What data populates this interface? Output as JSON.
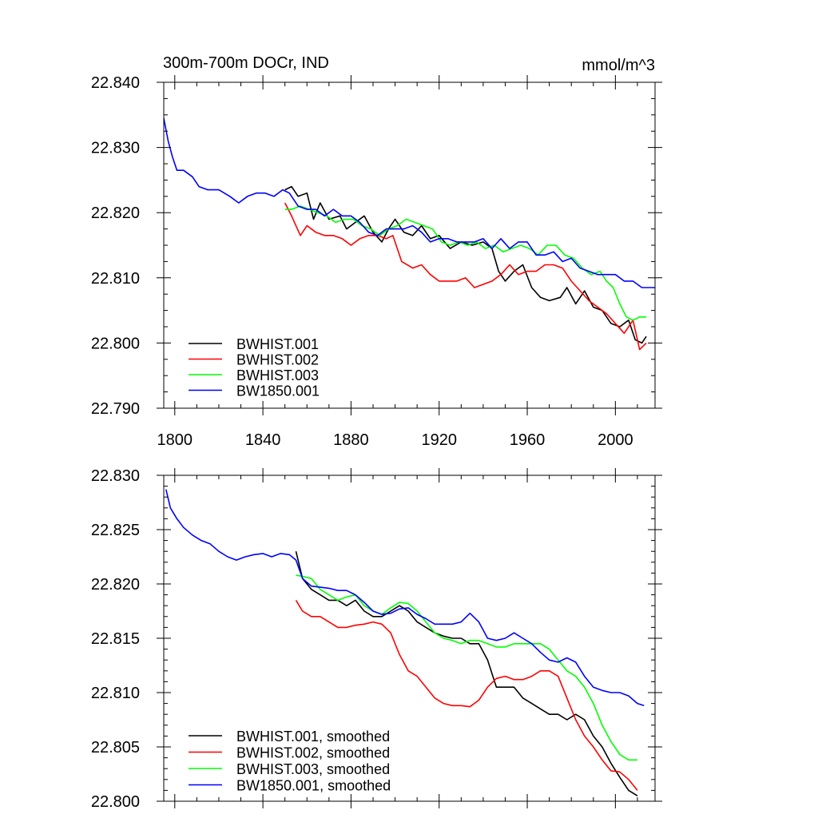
{
  "title_left": "300m-700m DOCr, IND",
  "title_right": "mmol/m^3",
  "chart_data": [
    {
      "type": "line",
      "title": "300m-700m DOCr, IND",
      "units": "mmol/m^3",
      "xlim": [
        1795,
        2018
      ],
      "ylim": [
        22.79,
        22.84
      ],
      "xticks": [
        1800,
        1840,
        1880,
        1920,
        1960,
        2000
      ],
      "xtick_labels": [
        "1800",
        "1840",
        "1880",
        "1920",
        "1960",
        "2000"
      ],
      "yticks": [
        22.79,
        22.8,
        22.81,
        22.82,
        22.83,
        22.84
      ],
      "ytick_labels": [
        "22.790",
        "22.800",
        "22.810",
        "22.820",
        "22.830",
        "22.840"
      ],
      "legend": "bottom-left",
      "series": [
        {
          "name": "BWHIST.001",
          "color": "#000000",
          "x": [
            1850,
            1853,
            1856,
            1860,
            1863,
            1866,
            1870,
            1875,
            1878,
            1882,
            1886,
            1890,
            1894,
            1897,
            1900,
            1904,
            1908,
            1912,
            1916,
            1920,
            1925,
            1930,
            1935,
            1940,
            1944,
            1947,
            1950,
            1954,
            1958,
            1962,
            1966,
            1970,
            1975,
            1978,
            1982,
            1986,
            1990,
            1994,
            1998,
            2002,
            2006,
            2009,
            2012,
            2014
          ],
          "y": [
            22.8235,
            22.824,
            22.8225,
            22.823,
            22.819,
            22.8215,
            22.819,
            22.8195,
            22.8175,
            22.8185,
            22.8195,
            22.817,
            22.8155,
            22.8175,
            22.819,
            22.817,
            22.8165,
            22.818,
            22.816,
            22.8165,
            22.8145,
            22.8155,
            22.815,
            22.8155,
            22.8145,
            22.811,
            22.8095,
            22.811,
            22.812,
            22.8085,
            22.807,
            22.8065,
            22.807,
            22.8085,
            22.806,
            22.808,
            22.8055,
            22.805,
            22.803,
            22.8025,
            22.8035,
            22.8005,
            22.8,
            22.801
          ]
        },
        {
          "name": "BWHIST.002",
          "color": "#ff0000",
          "x": [
            1850,
            1853,
            1857,
            1860,
            1864,
            1868,
            1872,
            1876,
            1880,
            1884,
            1888,
            1892,
            1896,
            1899,
            1903,
            1908,
            1912,
            1916,
            1920,
            1924,
            1928,
            1932,
            1936,
            1940,
            1944,
            1948,
            1952,
            1956,
            1960,
            1964,
            1968,
            1972,
            1976,
            1980,
            1984,
            1988,
            1992,
            1996,
            2000,
            2004,
            2008,
            2011,
            2014
          ],
          "y": [
            22.8215,
            22.8195,
            22.8165,
            22.818,
            22.817,
            22.8165,
            22.8165,
            22.816,
            22.815,
            22.816,
            22.8165,
            22.8165,
            22.816,
            22.8165,
            22.8125,
            22.8115,
            22.812,
            22.8105,
            22.8095,
            22.8095,
            22.8095,
            22.81,
            22.8085,
            22.809,
            22.8095,
            22.8105,
            22.812,
            22.8105,
            22.811,
            22.811,
            22.812,
            22.812,
            22.8115,
            22.8095,
            22.808,
            22.8065,
            22.8055,
            22.8045,
            22.803,
            22.8015,
            22.8035,
            22.799,
            22.8
          ]
        },
        {
          "name": "BWHIST.003",
          "color": "#00ff00",
          "x": [
            1850,
            1853,
            1857,
            1861,
            1865,
            1869,
            1873,
            1877,
            1881,
            1885,
            1889,
            1893,
            1897,
            1901,
            1905,
            1909,
            1913,
            1917,
            1921,
            1925,
            1929,
            1933,
            1937,
            1941,
            1945,
            1949,
            1953,
            1957,
            1961,
            1965,
            1969,
            1973,
            1977,
            1981,
            1985,
            1989,
            1993,
            1996,
            1999,
            2002,
            2005,
            2008,
            2011,
            2014
          ],
          "y": [
            22.8205,
            22.8205,
            22.821,
            22.8205,
            22.82,
            22.8195,
            22.8185,
            22.819,
            22.819,
            22.818,
            22.8175,
            22.8165,
            22.8175,
            22.818,
            22.819,
            22.8185,
            22.818,
            22.8175,
            22.8155,
            22.815,
            22.8155,
            22.815,
            22.8155,
            22.8145,
            22.815,
            22.814,
            22.8145,
            22.815,
            22.8145,
            22.8135,
            22.815,
            22.815,
            22.8135,
            22.813,
            22.8115,
            22.8105,
            22.811,
            22.8095,
            22.8085,
            22.806,
            22.804,
            22.8035,
            22.804,
            22.804
          ]
        },
        {
          "name": "BW1850.001",
          "color": "#0000ff",
          "x": [
            1795,
            1797,
            1799,
            1801,
            1804,
            1808,
            1811,
            1815,
            1820,
            1825,
            1829,
            1833,
            1837,
            1841,
            1845,
            1849,
            1852,
            1856,
            1860,
            1864,
            1868,
            1872,
            1876,
            1880,
            1884,
            1888,
            1892,
            1896,
            1900,
            1904,
            1908,
            1912,
            1916,
            1920,
            1924,
            1928,
            1932,
            1936,
            1940,
            1944,
            1948,
            1952,
            1956,
            1960,
            1964,
            1968,
            1972,
            1976,
            1980,
            1984,
            1988,
            1992,
            1996,
            2000,
            2004,
            2008,
            2012,
            2016,
            2018
          ],
          "y": [
            22.8345,
            22.831,
            22.8285,
            22.8265,
            22.8265,
            22.8255,
            22.824,
            22.8235,
            22.8235,
            22.8225,
            22.8215,
            22.8225,
            22.823,
            22.823,
            22.8225,
            22.8235,
            22.823,
            22.821,
            22.8205,
            22.8205,
            22.8195,
            22.8205,
            22.8195,
            22.8195,
            22.8185,
            22.817,
            22.8165,
            22.8175,
            22.8175,
            22.8175,
            22.818,
            22.817,
            22.8155,
            22.816,
            22.816,
            22.8155,
            22.8155,
            22.8155,
            22.816,
            22.8145,
            22.816,
            22.8145,
            22.8155,
            22.8155,
            22.8135,
            22.8135,
            22.814,
            22.8125,
            22.813,
            22.8115,
            22.811,
            22.8105,
            22.8105,
            22.8105,
            22.8095,
            22.8095,
            22.8085,
            22.8085,
            22.8085
          ]
        }
      ]
    },
    {
      "type": "line",
      "title": "",
      "xlim": [
        1795,
        2018
      ],
      "ylim": [
        22.8,
        22.83
      ],
      "xticks": [
        1800,
        1840,
        1880,
        1920,
        1960,
        2000
      ],
      "yticks": [
        22.8,
        22.805,
        22.81,
        22.815,
        22.82,
        22.825,
        22.83
      ],
      "ytick_labels": [
        "22.800",
        "22.805",
        "22.810",
        "22.815",
        "22.820",
        "22.825",
        "22.830"
      ],
      "legend": "bottom-left",
      "series": [
        {
          "name": "BWHIST.001, smoothed",
          "color": "#000000",
          "x": [
            1855,
            1858,
            1862,
            1866,
            1870,
            1874,
            1878,
            1882,
            1886,
            1890,
            1894,
            1898,
            1902,
            1906,
            1910,
            1914,
            1918,
            1922,
            1926,
            1930,
            1934,
            1938,
            1942,
            1946,
            1950,
            1954,
            1958,
            1962,
            1966,
            1970,
            1974,
            1978,
            1982,
            1986,
            1990,
            1994,
            1998,
            2002,
            2006,
            2010
          ],
          "y": [
            22.823,
            22.8205,
            22.8195,
            22.819,
            22.8185,
            22.8185,
            22.818,
            22.8185,
            22.8175,
            22.817,
            22.817,
            22.8175,
            22.818,
            22.8175,
            22.8165,
            22.816,
            22.8155,
            22.8152,
            22.815,
            22.815,
            22.8145,
            22.8145,
            22.813,
            22.8105,
            22.8105,
            22.8105,
            22.8095,
            22.809,
            22.8085,
            22.808,
            22.808,
            22.8075,
            22.808,
            22.8075,
            22.806,
            22.805,
            22.8035,
            22.8022,
            22.801,
            22.8005
          ]
        },
        {
          "name": "BWHIST.002, smoothed",
          "color": "#ff0000",
          "x": [
            1855,
            1858,
            1862,
            1866,
            1870,
            1874,
            1878,
            1882,
            1886,
            1890,
            1894,
            1898,
            1902,
            1906,
            1910,
            1914,
            1918,
            1922,
            1926,
            1930,
            1934,
            1938,
            1942,
            1946,
            1950,
            1954,
            1958,
            1962,
            1966,
            1970,
            1974,
            1978,
            1982,
            1986,
            1990,
            1994,
            1998,
            2002,
            2006,
            2010
          ],
          "y": [
            22.8185,
            22.8175,
            22.817,
            22.817,
            22.8165,
            22.816,
            22.816,
            22.8162,
            22.8163,
            22.8165,
            22.8163,
            22.8155,
            22.8135,
            22.812,
            22.8115,
            22.8105,
            22.8095,
            22.809,
            22.8088,
            22.8088,
            22.8087,
            22.8093,
            22.8105,
            22.8113,
            22.8115,
            22.8112,
            22.8112,
            22.8115,
            22.812,
            22.812,
            22.8115,
            22.8095,
            22.8075,
            22.806,
            22.805,
            22.8038,
            22.8028,
            22.8027,
            22.802,
            22.801
          ]
        },
        {
          "name": "BWHIST.003, smoothed",
          "color": "#00ff00",
          "x": [
            1855,
            1858,
            1862,
            1866,
            1870,
            1874,
            1878,
            1882,
            1886,
            1890,
            1894,
            1898,
            1902,
            1906,
            1910,
            1914,
            1918,
            1922,
            1926,
            1930,
            1934,
            1938,
            1942,
            1946,
            1950,
            1954,
            1958,
            1962,
            1966,
            1970,
            1974,
            1978,
            1982,
            1986,
            1990,
            1994,
            1998,
            2002,
            2006,
            2010
          ],
          "y": [
            22.8208,
            22.8207,
            22.8205,
            22.8195,
            22.819,
            22.8185,
            22.8188,
            22.819,
            22.818,
            22.8175,
            22.8172,
            22.8178,
            22.8183,
            22.8182,
            22.8175,
            22.8165,
            22.8155,
            22.815,
            22.8148,
            22.8145,
            22.8148,
            22.8148,
            22.8145,
            22.8142,
            22.8142,
            22.8145,
            22.8145,
            22.8145,
            22.8145,
            22.814,
            22.813,
            22.812,
            22.8115,
            22.8105,
            22.809,
            22.807,
            22.8055,
            22.8043,
            22.8038,
            22.8038
          ]
        },
        {
          "name": "BW1850.001, smoothed",
          "color": "#0000ff",
          "x": [
            1796,
            1798,
            1801,
            1804,
            1808,
            1812,
            1816,
            1820,
            1824,
            1828,
            1832,
            1836,
            1840,
            1844,
            1848,
            1852,
            1855,
            1858,
            1862,
            1866,
            1870,
            1874,
            1878,
            1882,
            1886,
            1890,
            1894,
            1898,
            1902,
            1906,
            1910,
            1914,
            1918,
            1922,
            1926,
            1930,
            1934,
            1938,
            1942,
            1946,
            1950,
            1954,
            1958,
            1962,
            1966,
            1970,
            1974,
            1978,
            1982,
            1986,
            1990,
            1994,
            1998,
            2002,
            2006,
            2010,
            2013
          ],
          "y": [
            22.8287,
            22.827,
            22.826,
            22.8252,
            22.8245,
            22.824,
            22.8237,
            22.823,
            22.8225,
            22.8222,
            22.8225,
            22.8227,
            22.8228,
            22.8225,
            22.8228,
            22.8227,
            22.8222,
            22.8205,
            22.8198,
            22.8197,
            22.8196,
            22.8194,
            22.8194,
            22.819,
            22.8183,
            22.8175,
            22.8172,
            22.8173,
            22.8177,
            22.8178,
            22.8172,
            22.8168,
            22.8163,
            22.8163,
            22.8163,
            22.8165,
            22.8173,
            22.8165,
            22.815,
            22.8148,
            22.815,
            22.8155,
            22.815,
            22.8145,
            22.8137,
            22.813,
            22.8128,
            22.8132,
            22.8128,
            22.8115,
            22.8105,
            22.8102,
            22.81,
            22.81,
            22.8097,
            22.809,
            22.8088
          ]
        }
      ]
    }
  ]
}
